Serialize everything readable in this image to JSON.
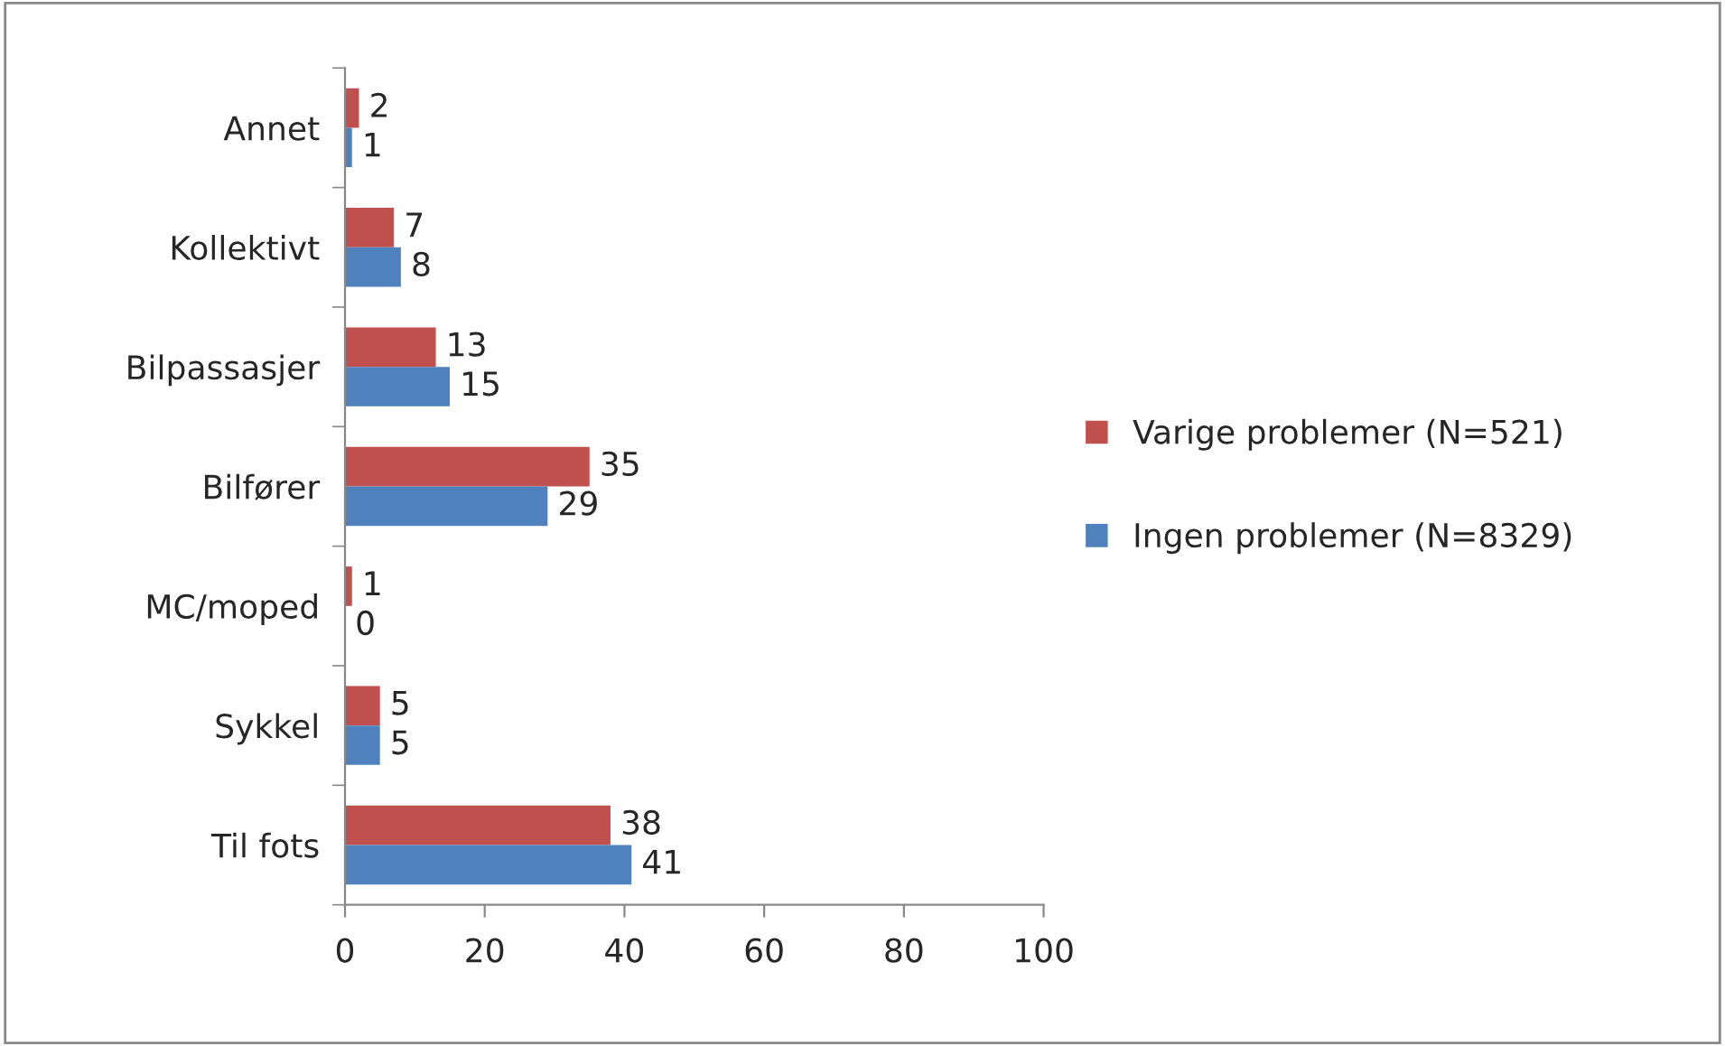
{
  "chart_data": {
    "type": "bar",
    "orientation": "horizontal",
    "categories": [
      "Annet",
      "Kollektivt",
      "Bilpassasjer",
      "Bilfører",
      "MC/moped",
      "Sykkel",
      "Til fots"
    ],
    "series": [
      {
        "name": "Varige problemer (N=521)",
        "color": "#c0504d",
        "values": [
          2,
          7,
          13,
          35,
          1,
          5,
          38
        ]
      },
      {
        "name": "Ingen problemer (N=8329)",
        "color": "#4f81bd",
        "values": [
          1,
          8,
          15,
          29,
          0,
          5,
          41
        ]
      }
    ],
    "xlim": [
      0,
      100
    ],
    "xticks": [
      0,
      20,
      40,
      60,
      80,
      100
    ],
    "grid": false,
    "legend": "right",
    "data_labels": true
  }
}
